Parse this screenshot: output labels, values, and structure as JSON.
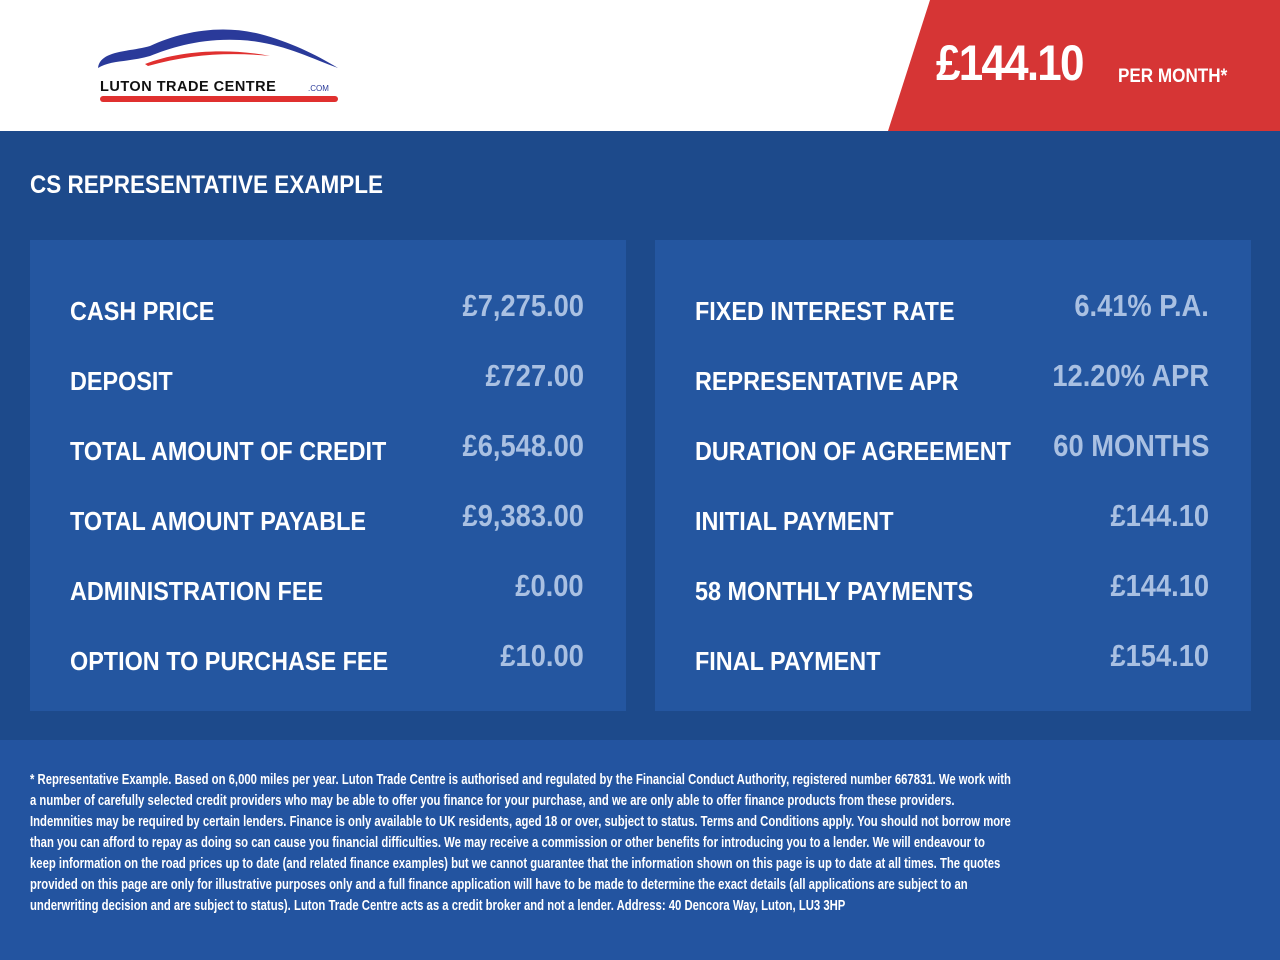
{
  "header": {
    "logo_text": "LUTON TRADE CENTRE.COM",
    "price": "£144.10",
    "price_suffix": "PER MONTH*"
  },
  "colors": {
    "brand_blue": "#1d4a8b",
    "panel_blue": "#2456a0",
    "accent_red": "#d63535",
    "value_blue": "#a9c0e2"
  },
  "main": {
    "title": "CS REPRESENTATIVE EXAMPLE",
    "left_rows": [
      {
        "label": "CASH PRICE",
        "value": "£7,275.00"
      },
      {
        "label": "DEPOSIT",
        "value": "£727.00"
      },
      {
        "label": "TOTAL AMOUNT OF CREDIT",
        "value": "£6,548.00"
      },
      {
        "label": "TOTAL AMOUNT PAYABLE",
        "value": "£9,383.00"
      },
      {
        "label": "ADMINISTRATION FEE",
        "value": "£0.00"
      },
      {
        "label": "OPTION TO PURCHASE FEE",
        "value": "£10.00"
      }
    ],
    "right_rows": [
      {
        "label": "FIXED INTEREST RATE",
        "value": "6.41% P.A."
      },
      {
        "label": "REPRESENTATIVE APR",
        "value": "12.20% APR"
      },
      {
        "label": "DURATION OF AGREEMENT",
        "value": "60 MONTHS"
      },
      {
        "label": "INITIAL PAYMENT",
        "value": "£144.10"
      },
      {
        "label": "58 MONTHLY PAYMENTS",
        "value": "£144.10"
      },
      {
        "label": "FINAL PAYMENT",
        "value": "£154.10"
      }
    ]
  },
  "footer": {
    "disclaimer": "* Representative Example. Based on 6,000 miles per year. Luton Trade Centre is authorised and regulated by the Financial Conduct Authority, registered number 667831. We work with a number of carefully selected credit providers who may be able to offer you finance for your purchase, and we are only able to offer finance products from these providers. Indemnities may be required by certain lenders. Finance is only available to UK residents, aged 18 or over, subject to status. Terms and Conditions apply. You should not borrow more than you can afford to repay as doing so can cause you financial difficulties. We may receive a commission or other benefits for introducing you to a lender. We will endeavour to keep information on the road prices up to date (and related finance examples) but we cannot guarantee that the information shown on this page is up to date at all times. The quotes provided on this page are only for illustrative purposes only and a full finance application will have to be made to determine the exact details (all applications are subject to an underwriting decision and are subject to status). Luton Trade Centre acts as a credit broker and not a lender. Address: 40 Dencora Way, Luton, LU3 3HP"
  }
}
